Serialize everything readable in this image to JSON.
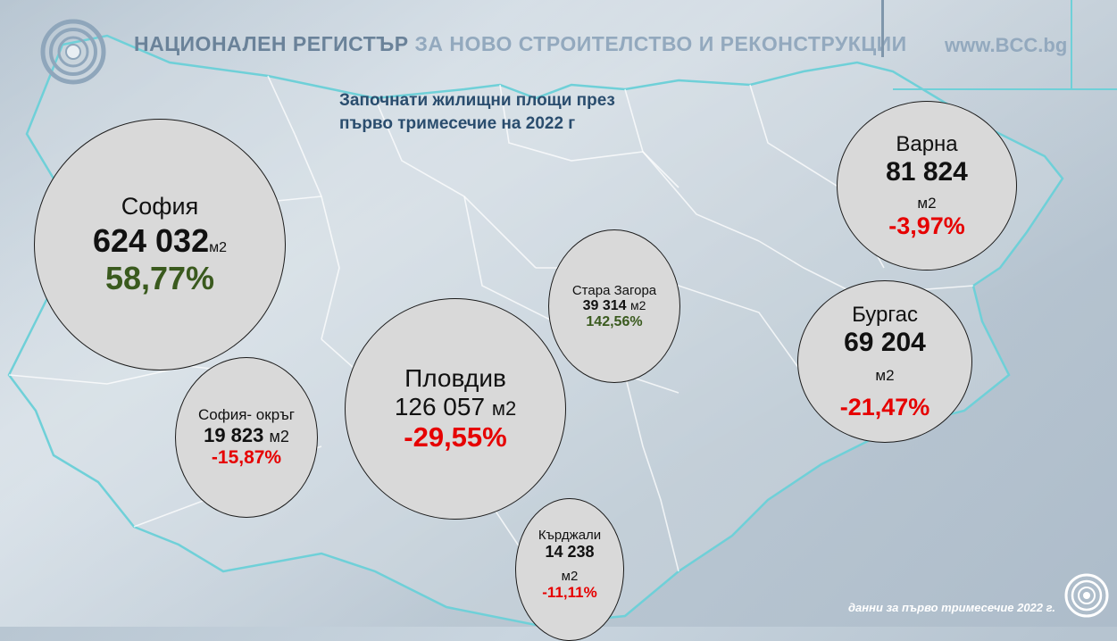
{
  "header": {
    "title_part1": "НАЦИОНАЛЕН РЕГИСТЪР",
    "title_part2": "ЗА НОВО СТРОИТЕЛСТВО И РЕКОНСТРУКЦИИ",
    "website": "www.BCC.bg",
    "logo_icon": "concentric-rings-icon"
  },
  "subtitle": {
    "line1": "Започнати жилищни площи през",
    "line2": "първо тримесечие на 2022 г"
  },
  "cities": {
    "sofia": {
      "name": "София",
      "value": "624 032",
      "unit": "м2",
      "change": "58,77%"
    },
    "sofia_region": {
      "name": "София- окръг",
      "value": "19 823",
      "unit": "м2",
      "change": "-15,87%"
    },
    "plovdiv": {
      "name": "Пловдив",
      "value": "126 057",
      "unit": "м2",
      "change": "-29,55%"
    },
    "stara_zagora": {
      "name": "Стара Загора",
      "value": "39 314",
      "unit": "м2",
      "change": "142,56%"
    },
    "kardzhali": {
      "name": "Кърджали",
      "value": "14 238",
      "unit": "м2",
      "change": "-11,11%"
    },
    "varna": {
      "name": "Варна",
      "value": "81 824",
      "unit": "м2",
      "change": "-3,97%"
    },
    "burgas": {
      "name": "Бургас",
      "value": "69 204",
      "unit": "м2",
      "change": "-21,47%"
    }
  },
  "colors": {
    "positive": "#3a5a1e",
    "negative": "#e60000",
    "bubble_fill": "#d9d9d9"
  },
  "footnote": "данни за първо тримесечие 2022 г."
}
